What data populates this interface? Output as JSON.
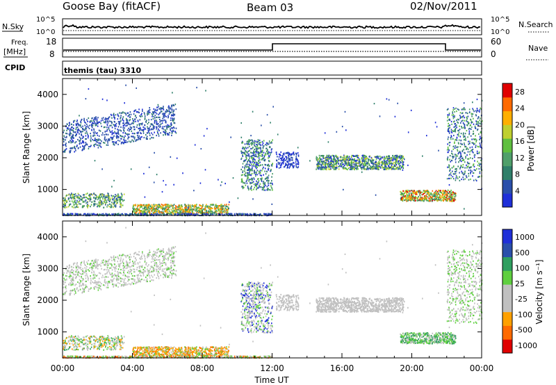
{
  "header": {
    "station": "Goose Bay (fitACF)",
    "beam": "Beam 03",
    "date": "02/Nov/2011"
  },
  "strip_nsky": {
    "left_label": "N.Sky",
    "right_label": "N.Search",
    "left_ticks": [
      "10^5",
      "10^0"
    ],
    "right_ticks": [
      "10^5",
      "10^0"
    ]
  },
  "strip_freq": {
    "left_label_line1": "Freq.",
    "left_label_line2": "[MHz]",
    "right_label": "Nave",
    "left_ticks": [
      "18",
      "8"
    ],
    "right_ticks": [
      "60",
      "0"
    ]
  },
  "strip_cpid": {
    "left_label": "CPID",
    "program": "themis (tau) 3310"
  },
  "colors": {
    "power": [
      "#1f2fd8",
      "#2a4faa",
      "#2f7f6a",
      "#4f9f6a",
      "#5fbf3f",
      "#bfcf2f",
      "#ffaf00",
      "#ff6a00",
      "#e00000"
    ],
    "velocity": [
      "#e00000",
      "#ff6a00",
      "#ffa000",
      "#c0c0c0",
      "#c0c0c0",
      "#5fcf3f",
      "#2f9f5f",
      "#2a4faa",
      "#1f2fd8"
    ]
  },
  "chart_data": [
    {
      "type": "heatmap",
      "name": "power",
      "ylabel": "Slant Range [km]",
      "yticks": [
        "1000",
        "2000",
        "3000",
        "4000"
      ],
      "ytick_values": [
        1000,
        2000,
        3000,
        4000
      ],
      "ylim": [
        180,
        4500
      ],
      "colorbar_label": "Power [dB]",
      "colorbar_ticks": [
        "4",
        "8",
        "12",
        "16",
        "20",
        "24",
        "28"
      ],
      "colorbar_values": [
        4,
        8,
        12,
        16,
        20,
        24,
        28
      ],
      "colorbar_range": [
        0,
        30
      ]
    },
    {
      "type": "heatmap",
      "name": "velocity",
      "ylabel": "Slant Range [km]",
      "yticks": [
        "1000",
        "2000",
        "3000",
        "4000"
      ],
      "ytick_values": [
        1000,
        2000,
        3000,
        4000
      ],
      "ylim": [
        180,
        4500
      ],
      "colorbar_label": "Velocity [m s⁻¹]",
      "colorbar_ticks": [
        "1000",
        "500",
        "100",
        "25",
        "-25",
        "-100",
        "-500",
        "-1000"
      ],
      "xlabel": "Time UT",
      "xticks": [
        "00:00",
        "04:00",
        "08:00",
        "12:00",
        "16:00",
        "20:00",
        "00:00"
      ],
      "xtick_hours": [
        0,
        4,
        8,
        12,
        16,
        20,
        24
      ],
      "xlim": [
        0,
        24
      ]
    }
  ]
}
